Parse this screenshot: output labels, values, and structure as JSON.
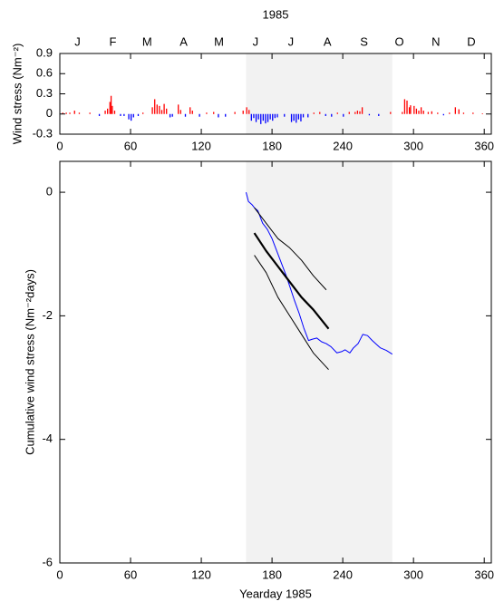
{
  "chart_data": [
    {
      "type": "bar",
      "title": "1985",
      "ylabel": "Wind stress (Nm⁻²)",
      "xlim": [
        0,
        366
      ],
      "xticks": [
        0,
        60,
        120,
        180,
        240,
        300,
        360
      ],
      "ylim": [
        -0.3,
        0.9
      ],
      "yticks": [
        -0.3,
        0,
        0.3,
        0.6,
        0.9
      ],
      "x2ticks": [
        {
          "value": 15,
          "label": "J"
        },
        {
          "value": 45,
          "label": "F"
        },
        {
          "value": 74,
          "label": "M"
        },
        {
          "value": 105,
          "label": "A"
        },
        {
          "value": 135,
          "label": "M"
        },
        {
          "value": 166,
          "label": "J"
        },
        {
          "value": 196,
          "label": "J"
        },
        {
          "value": 227,
          "label": "A"
        },
        {
          "value": 258,
          "label": "S"
        },
        {
          "value": 288,
          "label": "O"
        },
        {
          "value": 319,
          "label": "N"
        },
        {
          "value": 349,
          "label": "D"
        }
      ],
      "highlight_x": [
        158,
        282
      ],
      "highlight_color": "#f2f2f2",
      "positive_color": "#ff0000",
      "negative_color": "#0000ff",
      "x": [
        2,
        5,
        8,
        12,
        16,
        25,
        33,
        38,
        40,
        42,
        43,
        44,
        46,
        51,
        54,
        58,
        60,
        62,
        66,
        70,
        78,
        80,
        82,
        84,
        86,
        88,
        90,
        93,
        95,
        100,
        102,
        106,
        110,
        112,
        118,
        124,
        130,
        134,
        140,
        148,
        155,
        158,
        160,
        162,
        164,
        166,
        168,
        170,
        172,
        174,
        176,
        178,
        180,
        182,
        184,
        190,
        196,
        198,
        200,
        202,
        204,
        206,
        210,
        215,
        220,
        225,
        230,
        235,
        240,
        245,
        250,
        252,
        254,
        256,
        262,
        270,
        280,
        290,
        292,
        294,
        296,
        297,
        300,
        302,
        304,
        306,
        308,
        312,
        315,
        320,
        325,
        330,
        335,
        338,
        342,
        350,
        358
      ],
      "values": [
        0.02,
        0.02,
        0.02,
        0.05,
        0.02,
        0.02,
        -0.03,
        0.05,
        0.08,
        0.18,
        0.27,
        0.12,
        0.05,
        -0.03,
        -0.03,
        -0.08,
        -0.1,
        -0.05,
        -0.03,
        0.02,
        0.1,
        0.22,
        0.14,
        0.12,
        0.06,
        0.15,
        0.08,
        -0.05,
        -0.04,
        0.14,
        0.06,
        -0.04,
        0.1,
        0.05,
        -0.04,
        0.02,
        0.03,
        -0.05,
        -0.04,
        0.03,
        0.05,
        0.1,
        0.06,
        -0.1,
        -0.06,
        -0.12,
        -0.08,
        -0.15,
        -0.1,
        -0.14,
        -0.12,
        -0.08,
        -0.1,
        -0.06,
        -0.05,
        -0.04,
        -0.12,
        -0.1,
        -0.13,
        -0.08,
        -0.11,
        -0.05,
        -0.05,
        0.02,
        0.03,
        -0.03,
        -0.04,
        0.02,
        -0.04,
        0.03,
        0.03,
        0.05,
        0.04,
        0.1,
        -0.02,
        -0.03,
        0.03,
        0.03,
        0.22,
        0.2,
        0.1,
        0.13,
        0.12,
        0.08,
        0.05,
        0.1,
        0.05,
        0.03,
        0.04,
        0.02,
        -0.02,
        0.02,
        0.1,
        0.07,
        0.02,
        0.02,
        0.01
      ]
    },
    {
      "type": "line",
      "xlabel": "Yearday 1985",
      "ylabel": "Cumulative wind stress (Nm⁻²days)",
      "xlim": [
        0,
        366
      ],
      "xticks": [
        0,
        60,
        120,
        180,
        240,
        300,
        360
      ],
      "ylim": [
        -6,
        0.5
      ],
      "yticks": [
        -6,
        -4,
        -2,
        0
      ],
      "highlight_x": [
        158,
        282
      ],
      "highlight_color": "#f2f2f2",
      "series": [
        {
          "color": "#0000ff",
          "width": 1,
          "x": [
            158,
            160,
            163,
            165,
            168,
            172,
            176,
            180,
            184,
            188,
            192,
            195,
            199,
            203,
            207,
            211,
            214,
            218,
            222,
            226,
            230,
            235,
            239,
            242,
            246,
            249,
            253,
            257,
            261,
            265,
            269,
            272,
            277,
            282
          ],
          "values": [
            0,
            -0.15,
            -0.2,
            -0.25,
            -0.3,
            -0.5,
            -0.6,
            -0.75,
            -0.95,
            -1.15,
            -1.35,
            -1.52,
            -1.75,
            -1.96,
            -2.2,
            -2.4,
            -2.38,
            -2.36,
            -2.42,
            -2.45,
            -2.5,
            -2.6,
            -2.58,
            -2.55,
            -2.6,
            -2.52,
            -2.45,
            -2.3,
            -2.32,
            -2.4,
            -2.47,
            -2.52,
            -2.56,
            -2.62
          ]
        },
        {
          "color": "#000000",
          "width": 2.2,
          "x": [
            165,
            175,
            185,
            195,
            205,
            215,
            228
          ],
          "values": [
            -0.66,
            -0.95,
            -1.2,
            -1.45,
            -1.7,
            -1.9,
            -2.21
          ]
        },
        {
          "color": "#000000",
          "width": 1,
          "x": [
            165,
            175,
            185,
            195,
            205,
            215,
            226
          ],
          "values": [
            -0.25,
            -0.5,
            -0.75,
            -0.9,
            -1.1,
            -1.35,
            -1.58
          ]
        },
        {
          "color": "#000000",
          "width": 1,
          "x": [
            165,
            175,
            185,
            195,
            205,
            215,
            228
          ],
          "values": [
            -1.02,
            -1.3,
            -1.7,
            -2.0,
            -2.3,
            -2.6,
            -2.87
          ]
        }
      ]
    }
  ]
}
